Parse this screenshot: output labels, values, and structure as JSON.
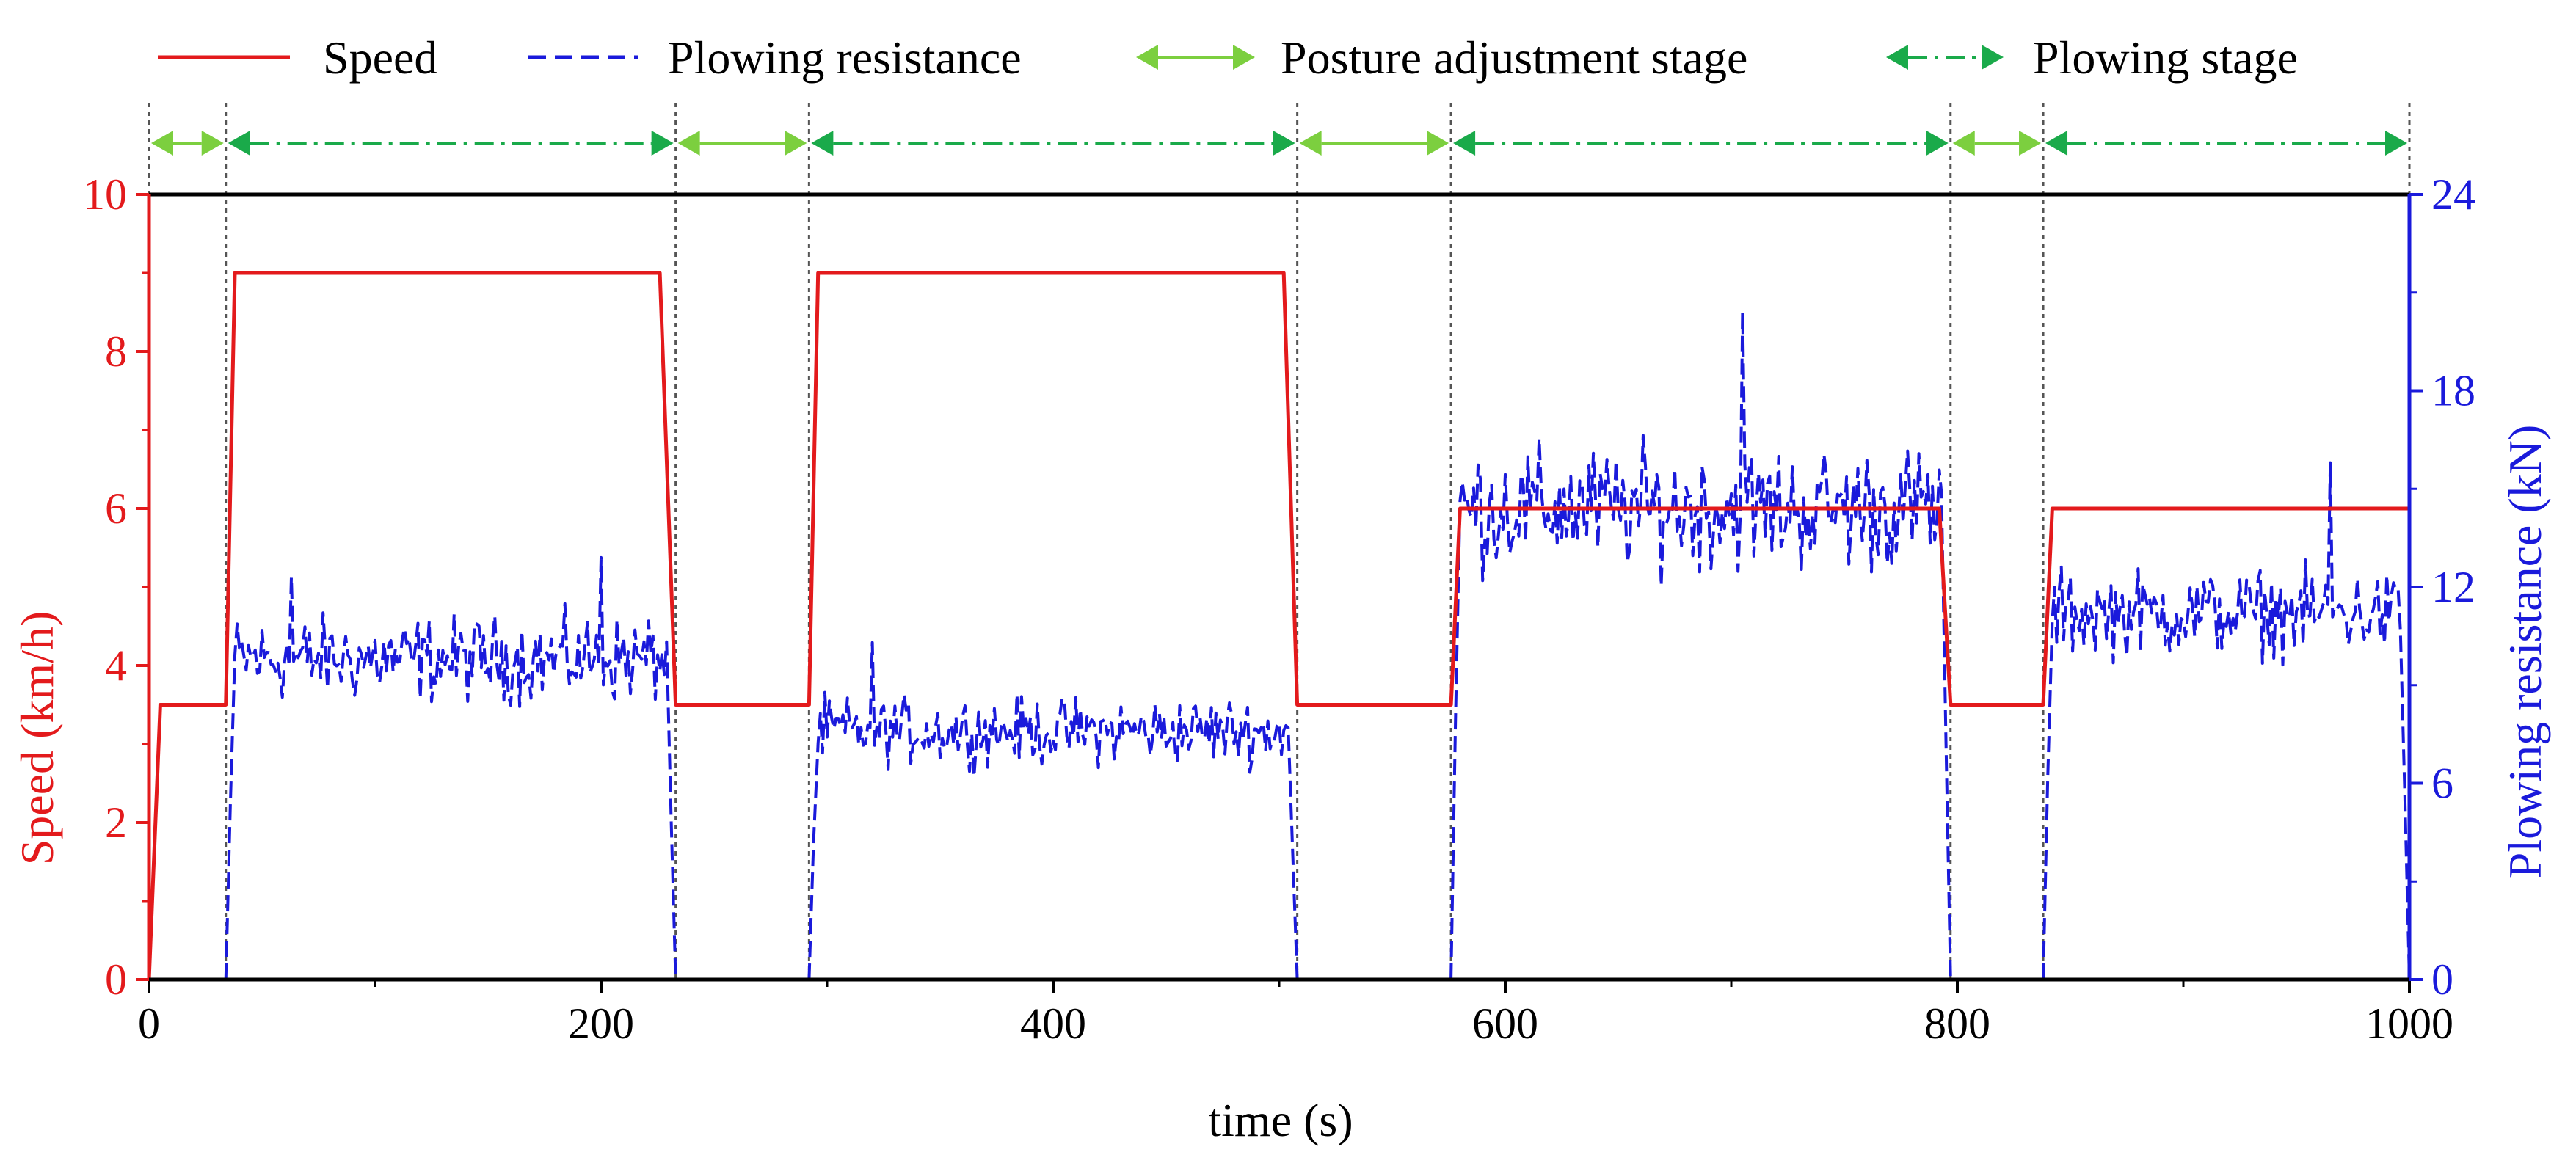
{
  "chart_data": {
    "type": "line",
    "xlabel": "time (s)",
    "ylabel_left": "Speed (km/h)",
    "ylabel_right": "Plowing resistance (kN)",
    "xlim": [
      0,
      1000
    ],
    "ylim_left": [
      0,
      10
    ],
    "ylim_right": [
      0,
      24
    ],
    "xticks": [
      0,
      200,
      400,
      600,
      800,
      1000
    ],
    "yticks_left": [
      0,
      2,
      4,
      6,
      8,
      10
    ],
    "yticks_right": [
      0,
      6,
      12,
      18,
      24
    ],
    "grid": false,
    "legend_position": "top",
    "legend": [
      {
        "label": "Speed",
        "style": "solid-line",
        "color": "#e31a1c"
      },
      {
        "label": "Plowing resistance",
        "style": "dashed-line",
        "color": "#1a1adb"
      },
      {
        "label": "Posture adjustment stage",
        "style": "double-arrow-solid",
        "color": "#7ccf3f"
      },
      {
        "label": "Plowing stage",
        "style": "double-arrow-dashdot",
        "color": "#1aaa4a"
      }
    ],
    "stage_boundaries": [
      0,
      34,
      233,
      292,
      508,
      576,
      797,
      838,
      1000
    ],
    "stages": [
      {
        "type": "Posture adjustment stage",
        "start": 0,
        "end": 34
      },
      {
        "type": "Plowing stage",
        "start": 34,
        "end": 233
      },
      {
        "type": "Posture adjustment stage",
        "start": 233,
        "end": 292
      },
      {
        "type": "Plowing stage",
        "start": 292,
        "end": 508
      },
      {
        "type": "Posture adjustment stage",
        "start": 508,
        "end": 576
      },
      {
        "type": "Plowing stage",
        "start": 576,
        "end": 797
      },
      {
        "type": "Posture adjustment stage",
        "start": 797,
        "end": 838
      },
      {
        "type": "Plowing stage",
        "start": 838,
        "end": 1000
      }
    ],
    "series": [
      {
        "name": "Speed",
        "axis": "left",
        "color": "#e31a1c",
        "points": [
          [
            0,
            0
          ],
          [
            5,
            3.5
          ],
          [
            34,
            3.5
          ],
          [
            38,
            9
          ],
          [
            226,
            9
          ],
          [
            233,
            3.5
          ],
          [
            292,
            3.5
          ],
          [
            296,
            9
          ],
          [
            502,
            9
          ],
          [
            508,
            3.5
          ],
          [
            576,
            3.5
          ],
          [
            580,
            6
          ],
          [
            792,
            6
          ],
          [
            797,
            3.5
          ],
          [
            838,
            3.5
          ],
          [
            842,
            6
          ],
          [
            1000,
            6
          ]
        ]
      },
      {
        "name": "Plowing resistance",
        "axis": "right",
        "color": "#1a1adb",
        "segments": [
          {
            "start": 34,
            "end": 233,
            "mean": 9.8,
            "amp": 0.9
          },
          {
            "start": 292,
            "end": 508,
            "mean": 7.6,
            "amp": 0.7
          },
          {
            "start": 576,
            "end": 797,
            "mean": 14.4,
            "amp": 1.3
          },
          {
            "start": 838,
            "end": 1000,
            "mean": 11.2,
            "amp": 0.9
          }
        ],
        "peaks": [
          [
            63,
            12.3
          ],
          [
            200,
            12.9
          ],
          [
            320,
            10.3
          ],
          [
            705,
            20.4
          ],
          [
            965,
            15.8
          ]
        ]
      }
    ],
    "reference_line": {
      "y_left": 10,
      "color": "#000000"
    }
  }
}
